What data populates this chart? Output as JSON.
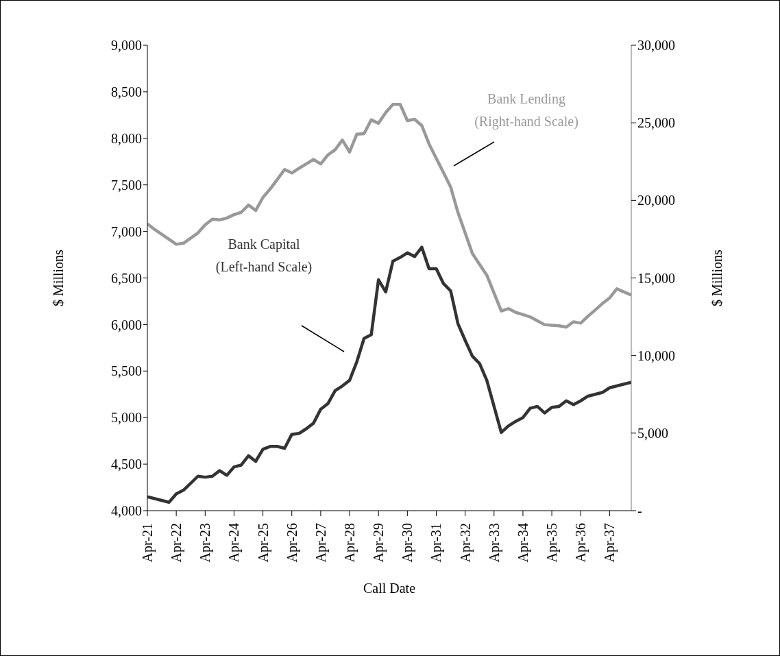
{
  "chart_data": {
    "type": "line",
    "xlabel": "Call Date",
    "ylabel": "$ Millions",
    "y2label": "$ Millions",
    "xlim": [
      "1921-04",
      "1938-01"
    ],
    "xticks": [
      {
        "value": "1921-04",
        "label": "Apr-21"
      },
      {
        "value": "1922-04",
        "label": "Apr-22"
      },
      {
        "value": "1923-04",
        "label": "Apr-23"
      },
      {
        "value": "1924-04",
        "label": "Apr-24"
      },
      {
        "value": "1925-04",
        "label": "Apr-25"
      },
      {
        "value": "1926-04",
        "label": "Apr-26"
      },
      {
        "value": "1927-04",
        "label": "Apr-27"
      },
      {
        "value": "1928-04",
        "label": "Apr-28"
      },
      {
        "value": "1929-04",
        "label": "Apr-29"
      },
      {
        "value": "1930-04",
        "label": "Apr-30"
      },
      {
        "value": "1931-04",
        "label": "Apr-31"
      },
      {
        "value": "1932-04",
        "label": "Apr-32"
      },
      {
        "value": "1933-04",
        "label": "Apr-33"
      },
      {
        "value": "1934-04",
        "label": "Apr-34"
      },
      {
        "value": "1935-04",
        "label": "Apr-35"
      },
      {
        "value": "1936-04",
        "label": "Apr-36"
      },
      {
        "value": "1937-04",
        "label": "Apr-37"
      }
    ],
    "ylim": [
      4000,
      9000
    ],
    "yticks": [
      {
        "value": 4000,
        "label": "4,000"
      },
      {
        "value": 4500,
        "label": "4,500"
      },
      {
        "value": 5000,
        "label": "5,000"
      },
      {
        "value": 5500,
        "label": "5,500"
      },
      {
        "value": 6000,
        "label": "6,000"
      },
      {
        "value": 6500,
        "label": "6,500"
      },
      {
        "value": 7000,
        "label": "7,000"
      },
      {
        "value": 7500,
        "label": "7,500"
      },
      {
        "value": 8000,
        "label": "8,000"
      },
      {
        "value": 8500,
        "label": "8,500"
      },
      {
        "value": 9000,
        "label": "9,000"
      }
    ],
    "y2lim": [
      0,
      30000
    ],
    "y2ticks": [
      {
        "value": 0,
        "label": "-"
      },
      {
        "value": 5000,
        "label": "5,000"
      },
      {
        "value": 10000,
        "label": "10,000"
      },
      {
        "value": 15000,
        "label": "15,000"
      },
      {
        "value": 20000,
        "label": "20,000"
      },
      {
        "value": 25000,
        "label": "25,000"
      },
      {
        "value": 30000,
        "label": "30,000"
      }
    ],
    "marker": "none",
    "line_style": "solid",
    "series": [
      {
        "name": "Bank Lending (Right-hand Scale)",
        "color": "#999999",
        "axis": "y2",
        "x": [
          "1921-04",
          "1921-07",
          "1922-04",
          "1922-07",
          "1923-01",
          "1923-04",
          "1923-07",
          "1923-10",
          "1924-01",
          "1924-04",
          "1924-07",
          "1924-10",
          "1925-01",
          "1925-04",
          "1925-07",
          "1925-10",
          "1926-01",
          "1926-04",
          "1926-07",
          "1926-10",
          "1927-01",
          "1927-04",
          "1927-07",
          "1927-10",
          "1928-01",
          "1928-04",
          "1928-07",
          "1928-10",
          "1929-01",
          "1929-04",
          "1929-07",
          "1929-10",
          "1930-01",
          "1930-04",
          "1930-07",
          "1930-10",
          "1931-01",
          "1931-04",
          "1931-07",
          "1931-10",
          "1932-01",
          "1932-04",
          "1932-07",
          "1932-10",
          "1933-01",
          "1933-07",
          "1933-10",
          "1934-01",
          "1934-04",
          "1934-07",
          "1934-10",
          "1935-01",
          "1935-04",
          "1935-07",
          "1935-10",
          "1936-01",
          "1936-04",
          "1936-07",
          "1936-10",
          "1937-01",
          "1937-04",
          "1937-07",
          "1938-01"
        ],
        "values": [
          18490,
          18130,
          17170,
          17240,
          17900,
          18420,
          18790,
          18740,
          18860,
          19080,
          19230,
          19700,
          19350,
          20190,
          20730,
          21360,
          21990,
          21770,
          22070,
          22350,
          22640,
          22350,
          22930,
          23270,
          23890,
          23120,
          24270,
          24300,
          25190,
          24970,
          25660,
          26190,
          26190,
          25140,
          25230,
          24820,
          23640,
          22710,
          21790,
          20850,
          19230,
          17900,
          16580,
          15870,
          15180,
          12870,
          13020,
          12780,
          12640,
          12490,
          12240,
          11990,
          11950,
          11920,
          11830,
          12170,
          12090,
          12530,
          12930,
          13350,
          13710,
          14300,
          13900
        ]
      },
      {
        "name": "Bank Capital (Left-hand Scale)",
        "color": "#333333",
        "x": [
          "1921-04",
          "1922-01",
          "1922-04",
          "1922-07",
          "1923-01",
          "1923-04",
          "1923-07",
          "1923-10",
          "1924-01",
          "1924-04",
          "1924-07",
          "1924-10",
          "1925-01",
          "1925-04",
          "1925-07",
          "1925-10",
          "1926-01",
          "1926-04",
          "1926-07",
          "1926-10",
          "1927-01",
          "1927-04",
          "1927-07",
          "1927-10",
          "1928-01",
          "1928-04",
          "1928-07",
          "1928-10",
          "1929-01",
          "1929-04",
          "1929-07",
          "1929-10",
          "1930-01",
          "1930-04",
          "1930-07",
          "1930-10",
          "1931-01",
          "1931-04",
          "1931-07",
          "1931-10",
          "1932-01",
          "1932-04",
          "1932-07",
          "1932-10",
          "1933-01",
          "1933-07",
          "1933-10",
          "1934-01",
          "1934-04",
          "1934-07",
          "1934-10",
          "1935-01",
          "1935-04",
          "1935-07",
          "1935-10",
          "1936-01",
          "1936-04",
          "1936-07",
          "1936-10",
          "1937-01",
          "1937-04",
          "1937-07",
          "1938-01"
        ],
        "values": [
          4150,
          4090,
          4180,
          4220,
          4370,
          4360,
          4370,
          4430,
          4380,
          4470,
          4490,
          4590,
          4530,
          4660,
          4690,
          4690,
          4670,
          4820,
          4830,
          4880,
          4940,
          5090,
          5150,
          5290,
          5340,
          5400,
          5600,
          5850,
          5890,
          6480,
          6350,
          6680,
          6720,
          6770,
          6730,
          6830,
          6600,
          6600,
          6440,
          6360,
          6010,
          5830,
          5660,
          5580,
          5400,
          4840,
          4910,
          4960,
          5000,
          5100,
          5120,
          5050,
          5110,
          5120,
          5180,
          5140,
          5180,
          5230,
          5250,
          5270,
          5320,
          5340,
          5380
        ]
      }
    ]
  }
}
